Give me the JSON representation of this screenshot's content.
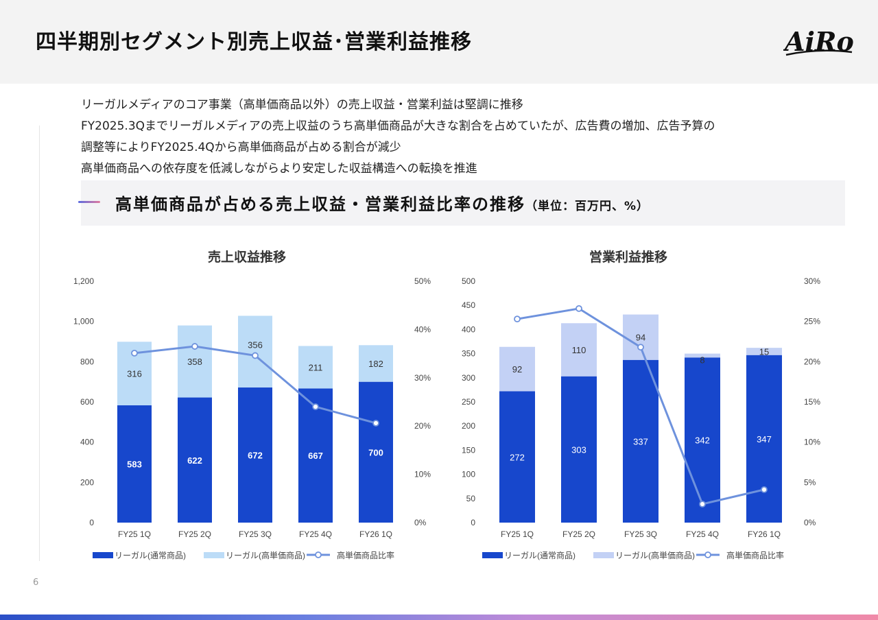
{
  "header": {
    "title": "四半期別セグメント別売上収益･営業利益推移",
    "logo_text": "AiRo"
  },
  "bullets": [
    "リーガルメディアのコア事業（高単価商品以外）の売上収益・営業利益は堅調に推移",
    "FY2025.3Qまでリーガルメディアの売上収益のうち高単価商品が大きな割合を占めていたが、広告費の増加、広告予算の",
    "調整等によりFY2025.4Qから高単価商品が占める割合が減少",
    "高単価商品への依存度を低減しながらより安定した収益構造への転換を推進"
  ],
  "banner": {
    "title": "高単価商品が占める売上収益・営業利益比率の推移",
    "unit": "（単位：百万円、%）"
  },
  "colors": {
    "regular": "#1747cc",
    "high_revenue": "#bcdcf7",
    "high_profit": "#c3d1f5",
    "ratio_line": "#6e92dd"
  },
  "chart_data": [
    {
      "type": "bar",
      "stacked": true,
      "title": "売上収益推移",
      "categories": [
        "FY25 1Q",
        "FY25 2Q",
        "FY25 3Q",
        "FY25 4Q",
        "FY26 1Q"
      ],
      "series": [
        {
          "name": "リーガル(通常商品)",
          "values": [
            583,
            622,
            672,
            667,
            700
          ]
        },
        {
          "name": "リーガル(高単価商品)",
          "values": [
            316,
            358,
            356,
            211,
            182
          ]
        }
      ],
      "line_series": {
        "name": "高単価商品比率",
        "values": [
          35.1,
          36.5,
          34.6,
          24.0,
          20.6
        ]
      },
      "ylim": [
        0,
        1200
      ],
      "yticks": [
        "0",
        "200",
        "400",
        "600",
        "800",
        "1,000",
        "1,200"
      ],
      "y2lim": [
        0,
        50
      ],
      "y2ticks": [
        "0%",
        "10%",
        "20%",
        "30%",
        "40%",
        "50%"
      ],
      "legend": "bottom"
    },
    {
      "type": "bar",
      "stacked": true,
      "title": "営業利益推移",
      "categories": [
        "FY25 1Q",
        "FY25 2Q",
        "FY25 3Q",
        "FY25 4Q",
        "FY26 1Q"
      ],
      "series": [
        {
          "name": "リーガル(通常商品)",
          "values": [
            272,
            303,
            337,
            342,
            347
          ]
        },
        {
          "name": "リーガル(高単価商品)",
          "values": [
            92,
            110,
            94,
            8,
            15
          ]
        }
      ],
      "line_series": {
        "name": "高単価商品比率",
        "values": [
          25.3,
          26.6,
          21.8,
          2.3,
          4.1
        ]
      },
      "ylim": [
        0,
        500
      ],
      "yticks": [
        "0",
        "50",
        "100",
        "150",
        "200",
        "250",
        "300",
        "350",
        "400",
        "450",
        "500"
      ],
      "y2lim": [
        0,
        30
      ],
      "y2ticks": [
        "0%",
        "5%",
        "10%",
        "15%",
        "20%",
        "25%",
        "30%"
      ],
      "legend": "bottom"
    }
  ],
  "page_number": "6"
}
